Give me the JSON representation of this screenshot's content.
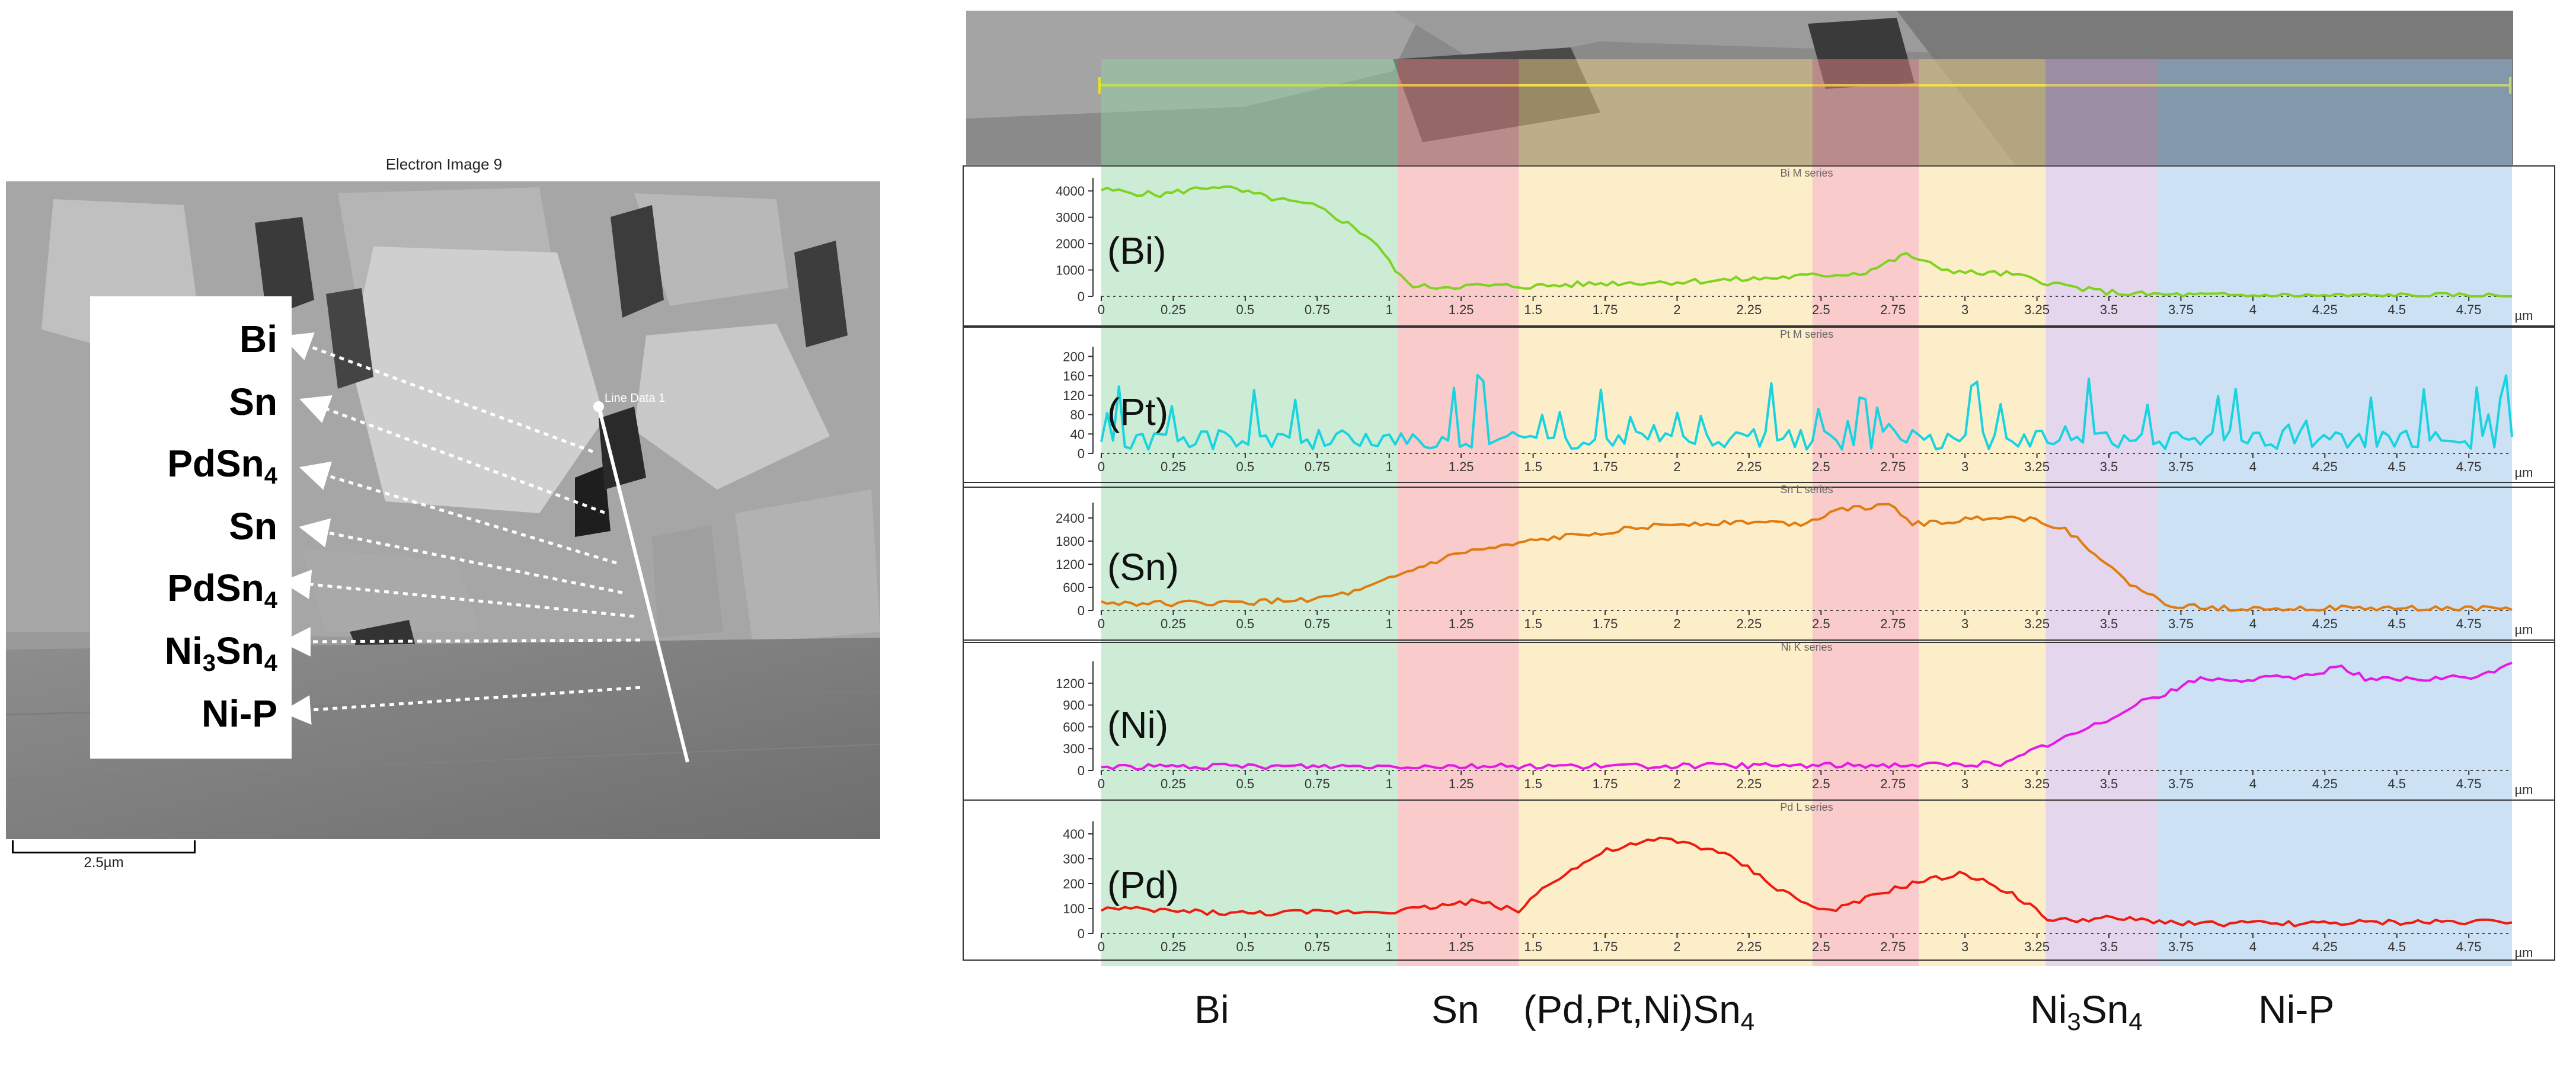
{
  "sem_panel": {
    "title": "Electron Image 9",
    "scale_bar": "2.5µm",
    "line_label": "Line Data 1",
    "phase_labels": [
      {
        "text": "Bi",
        "sub": "",
        "tail": ""
      },
      {
        "text": "Sn",
        "sub": "",
        "tail": ""
      },
      {
        "text": "PdSn",
        "sub": "4",
        "tail": ""
      },
      {
        "text": "Sn",
        "sub": "",
        "tail": ""
      },
      {
        "text": "PdSn",
        "sub": "4",
        "tail": ""
      },
      {
        "text": "Ni",
        "sub": "3",
        "tail": "Sn",
        "sub2": "4"
      },
      {
        "text": "Ni-P",
        "sub": "",
        "tail": ""
      }
    ]
  },
  "bottom_labels": [
    {
      "text": "Bi",
      "sub": "",
      "tail": "",
      "sub2": ""
    },
    {
      "text": "Sn",
      "sub": "",
      "tail": "",
      "sub2": ""
    },
    {
      "text": "(Pd,Pt,Ni)Sn",
      "sub": "4",
      "tail": "",
      "sub2": ""
    },
    {
      "text": "Ni",
      "sub": "3",
      "tail": "Sn",
      "sub2": "4"
    },
    {
      "text": "Ni-P",
      "sub": "",
      "tail": "",
      "sub2": ""
    }
  ],
  "colors": {
    "bi_zone": "#8fd4a4",
    "sn_zone": "#f28c8c",
    "pdsn_zone": "#fbd98a",
    "ni3sn4_zone": "#c4a6d8",
    "nip_zone": "#8fbde4",
    "bi_line": "#7ed321",
    "pt_line": "#19d3e0",
    "sn_line": "#e07b10",
    "ni_line": "#e619e6",
    "pd_line": "#ee1c10"
  },
  "chart_data": {
    "type": "line",
    "x_unit": "µm",
    "xlim": [
      0,
      4.9
    ],
    "x_ticks": [
      "0",
      "0.25",
      "0.5",
      "0.75",
      "1",
      "1.25",
      "1.5",
      "1.75",
      "2",
      "2.25",
      "2.5",
      "2.75",
      "3",
      "3.25",
      "3.5",
      "3.75",
      "4",
      "4.25",
      "4.5",
      "4.75"
    ],
    "phase_regions": [
      {
        "name": "Bi",
        "x0": 0.0,
        "x1": 1.03
      },
      {
        "name": "Sn",
        "x0": 1.03,
        "x1": 1.45
      },
      {
        "name": "(Pd,Pt,Ni)Sn4",
        "x0": 1.45,
        "x1": 2.47
      },
      {
        "name": "Sn",
        "x0": 2.47,
        "x1": 2.84
      },
      {
        "name": "(Pd,Pt,Ni)Sn4",
        "x0": 2.84,
        "x1": 3.28
      },
      {
        "name": "Ni3Sn4",
        "x0": 3.28,
        "x1": 3.67
      },
      {
        "name": "Ni-P",
        "x0": 3.67,
        "x1": 4.9
      }
    ],
    "series": [
      {
        "name": "Bi M series",
        "label": "(Bi)",
        "ylim": [
          0,
          4500
        ],
        "y_ticks": [
          "0",
          "1000",
          "2000",
          "3000",
          "4000"
        ],
        "color_key": "bi_line",
        "x": [
          0,
          0.2,
          0.4,
          0.6,
          0.75,
          0.85,
          0.95,
          1.0,
          1.05,
          1.1,
          1.3,
          1.5,
          1.75,
          2.0,
          2.25,
          2.5,
          2.65,
          2.8,
          2.9,
          3.0,
          3.15,
          3.3,
          3.45,
          3.6,
          3.8,
          4.0,
          4.3,
          4.6,
          4.9
        ],
        "values": [
          4050,
          3850,
          4200,
          3700,
          3400,
          2800,
          2100,
          1300,
          600,
          350,
          400,
          380,
          500,
          550,
          650,
          800,
          900,
          1600,
          1100,
          900,
          850,
          500,
          200,
          80,
          40,
          30,
          20,
          20,
          20
        ]
      },
      {
        "name": "Pt M series",
        "label": "(Pt)",
        "ylim": [
          0,
          220
        ],
        "y_ticks": [
          "0",
          "40",
          "80",
          "120",
          "160",
          "200"
        ],
        "color_key": "pt_line",
        "x": [
          0,
          4.9
        ],
        "values": [
          40,
          40
        ],
        "noise": 80,
        "seed": 3
      },
      {
        "name": "Sn L series",
        "label": "(Sn)",
        "ylim": [
          0,
          2800
        ],
        "y_ticks": [
          "0",
          "600",
          "1200",
          "1800",
          "2400"
        ],
        "color_key": "sn_line",
        "x": [
          0,
          0.25,
          0.5,
          0.75,
          0.9,
          1.0,
          1.1,
          1.25,
          1.4,
          1.5,
          1.75,
          2.0,
          2.25,
          2.45,
          2.55,
          2.75,
          2.82,
          2.95,
          3.1,
          3.25,
          3.35,
          3.45,
          3.55,
          3.7,
          3.85,
          4.0,
          4.5,
          4.9
        ],
        "values": [
          200,
          180,
          200,
          300,
          500,
          800,
          1100,
          1500,
          1650,
          1800,
          2050,
          2250,
          2300,
          2250,
          2650,
          2700,
          2250,
          2300,
          2450,
          2350,
          2100,
          1500,
          800,
          150,
          60,
          60,
          50,
          50
        ]
      },
      {
        "name": "Ni K series",
        "label": "(Ni)",
        "ylim": [
          0,
          1500
        ],
        "y_ticks": [
          "0",
          "300",
          "600",
          "900",
          "1200"
        ],
        "color_key": "ni_line",
        "x": [
          0,
          1.0,
          2.0,
          3.0,
          3.15,
          3.25,
          3.35,
          3.5,
          3.6,
          3.7,
          3.8,
          4.0,
          4.2,
          4.3,
          4.4,
          4.6,
          4.8,
          4.9
        ],
        "values": [
          50,
          60,
          60,
          80,
          100,
          300,
          450,
          700,
          950,
          1050,
          1250,
          1250,
          1300,
          1450,
          1250,
          1250,
          1300,
          1500
        ]
      },
      {
        "name": "Pd L series",
        "label": "(Pd)",
        "ylim": [
          0,
          450
        ],
        "y_ticks": [
          "0",
          "100",
          "200",
          "300",
          "400"
        ],
        "color_key": "pd_line",
        "x": [
          0,
          0.5,
          1.0,
          1.1,
          1.3,
          1.45,
          1.55,
          1.75,
          1.95,
          2.05,
          2.2,
          2.35,
          2.5,
          2.6,
          2.7,
          2.85,
          3.0,
          3.15,
          3.3,
          3.5,
          3.8,
          4.2,
          4.9
        ],
        "values": [
          100,
          80,
          90,
          100,
          130,
          90,
          200,
          330,
          380,
          360,
          300,
          180,
          90,
          110,
          160,
          210,
          240,
          170,
          50,
          60,
          40,
          40,
          50
        ]
      }
    ]
  }
}
